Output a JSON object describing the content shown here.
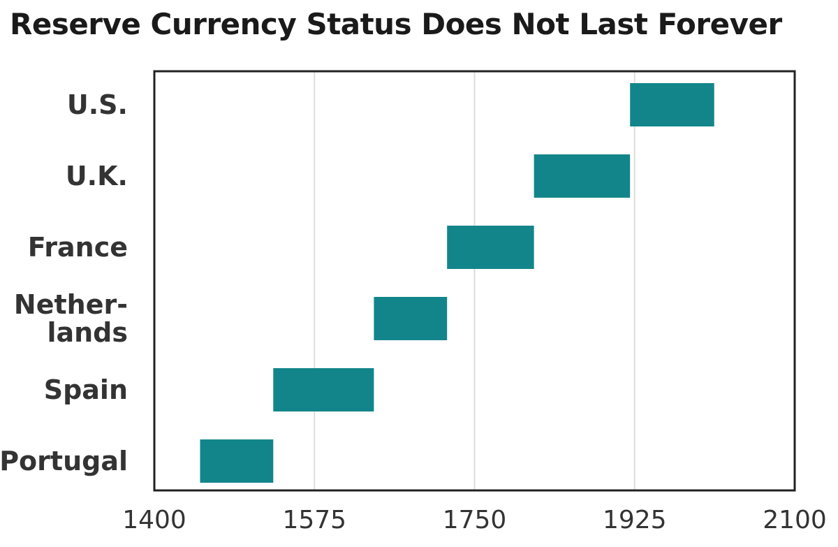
{
  "chart_data": {
    "type": "bar",
    "orientation": "horizontal-range",
    "title": "Reserve Currency Status Does Not Last Forever",
    "xlabel": "",
    "ylabel": "",
    "xlim": [
      1400,
      2100
    ],
    "xticks": [
      1400,
      1575,
      1750,
      1925,
      2100
    ],
    "grid": "vertical",
    "legend": "none",
    "bar_color": "#12858a",
    "categories": [
      {
        "label_lines": [
          "U.S."
        ],
        "start": 1920,
        "end": 2012
      },
      {
        "label_lines": [
          "U.K."
        ],
        "start": 1815,
        "end": 1920
      },
      {
        "label_lines": [
          "France"
        ],
        "start": 1720,
        "end": 1815
      },
      {
        "label_lines": [
          "Nether-",
          "lands"
        ],
        "start": 1640,
        "end": 1720
      },
      {
        "label_lines": [
          "Spain"
        ],
        "start": 1530,
        "end": 1640
      },
      {
        "label_lines": [
          "Portugal"
        ],
        "start": 1450,
        "end": 1530
      }
    ]
  }
}
